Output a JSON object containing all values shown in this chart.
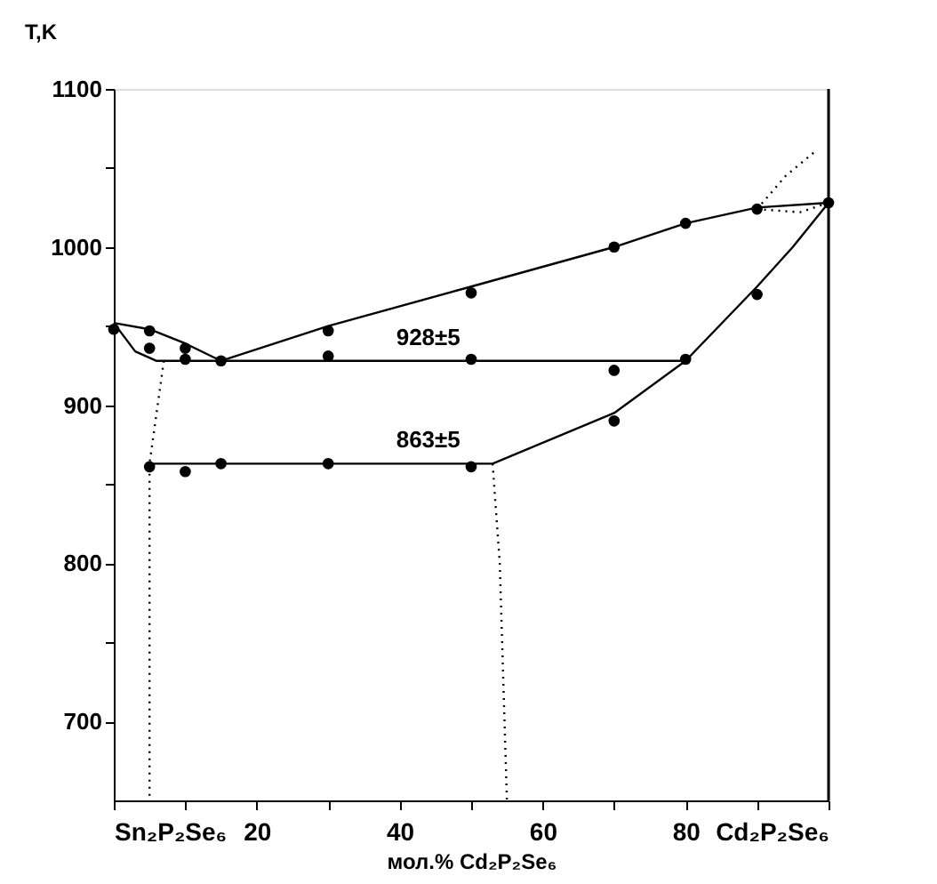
{
  "chart_data": {
    "type": "scatter",
    "xlabel": "мол.% Cd₂P₂Se₆",
    "ylabel": "T,K",
    "xlim": [
      0,
      100
    ],
    "ylim": [
      650,
      1100
    ],
    "xticks": [
      {
        "value": 0,
        "label": "Sn₂P₂Se₆"
      },
      {
        "value": 10,
        "label": null
      },
      20,
      {
        "value": 30,
        "label": null
      },
      40,
      {
        "value": 50,
        "label": null
      },
      60,
      {
        "value": 70,
        "label": null
      },
      80,
      {
        "value": 90,
        "label": null
      },
      {
        "value": 100,
        "label": "Cd₂P₂Se₆"
      }
    ],
    "yticks": [
      700,
      {
        "value": 750,
        "label": null
      },
      800,
      {
        "value": 850,
        "label": null
      },
      900,
      {
        "value": 950,
        "label": null
      },
      1000,
      {
        "value": 1050,
        "label": null
      },
      1100
    ],
    "grid": false,
    "marker": "circle",
    "series": [
      {
        "color": "#000000",
        "x": [
          0,
          5,
          5,
          10,
          10,
          15,
          30,
          30,
          50,
          50,
          70,
          80,
          90,
          100,
          90,
          70,
          80,
          70,
          50,
          5,
          10,
          15,
          30
        ],
        "values": [
          948,
          947,
          936,
          936,
          929,
          928,
          947,
          931,
          971,
          929,
          1000,
          1015,
          1024,
          1028,
          970,
          922,
          929,
          890,
          861,
          861,
          858,
          863,
          863
        ]
      },
      {
        "type": "line",
        "marker": "none",
        "line_style": "solid",
        "color": "#000000",
        "x": [
          0,
          5,
          10,
          15,
          30,
          50,
          70,
          80,
          90,
          100
        ],
        "values": [
          952,
          948,
          939,
          928,
          950,
          975,
          1000,
          1015,
          1025,
          1028
        ]
      },
      {
        "type": "line",
        "marker": "none",
        "line_style": "solid",
        "color": "#000000",
        "x": [
          0,
          3,
          6,
          80
        ],
        "values": [
          952,
          934,
          928,
          928
        ]
      },
      {
        "type": "line",
        "marker": "none",
        "line_style": "solid",
        "color": "#000000",
        "x": [
          5,
          53,
          70,
          80,
          90,
          95,
          100
        ],
        "values": [
          863,
          863,
          895,
          928,
          975,
          1000,
          1028
        ]
      },
      {
        "type": "line",
        "marker": "none",
        "line_style": "dotted",
        "color": "#000000",
        "x": [
          7,
          5,
          5
        ],
        "values": [
          928,
          863,
          650
        ]
      },
      {
        "type": "line",
        "marker": "none",
        "line_style": "dotted",
        "color": "#000000",
        "x": [
          53,
          54,
          55
        ],
        "values": [
          863,
          800,
          650
        ]
      },
      {
        "type": "line",
        "marker": "none",
        "line_style": "dotted",
        "color": "#000000",
        "x": [
          90,
          94,
          98
        ],
        "values": [
          1024,
          1045,
          1060
        ]
      },
      {
        "type": "line",
        "marker": "none",
        "line_style": "dotted",
        "color": "#000000",
        "x": [
          90,
          96,
          100
        ],
        "values": [
          1024,
          1022,
          1028
        ]
      }
    ],
    "ref_lines": [
      {
        "axis": "x",
        "value": 100,
        "color": "#000000",
        "line_style": "solid"
      }
    ],
    "annotations": [
      {
        "text": "928±5",
        "x": 44,
        "y": 928
      },
      {
        "text": "863±5",
        "x": 44,
        "y": 863
      }
    ]
  }
}
